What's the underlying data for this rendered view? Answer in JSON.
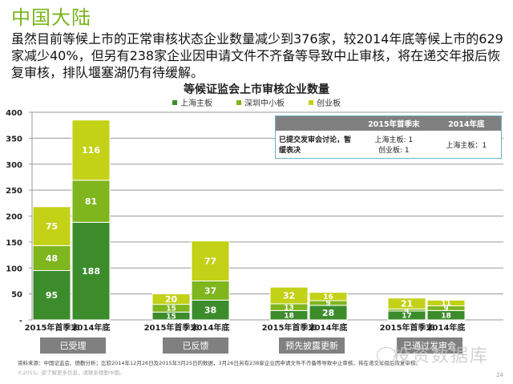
{
  "slide": {
    "title": "中国大陆",
    "intro": "虽然目前等候上市的正常审核状态企业数量减少到376家，较2014年底等候上市的629家减少40%，但另有238家企业因申请文件不齐备等导致中止审核，将在递交年报后恢复审核，排队堰塞湖仍有待缓解。",
    "source": "资料来源：中国证监会、德勤分析；比较2014年12月26日及2015年3月25日的数据，3月26日另有238家企业因申请文件不齐备等导致中止审核，将在递交年报后恢复审核。",
    "copyright": "©2015。欲了解更多信息，请联系德勤中国。",
    "page_number": "24",
    "watermark": "投资数据库",
    "watermark_icon": "wechat-icon"
  },
  "colors": {
    "shanghai": "#3c8c2c",
    "shenzhen_sme": "#7fb51d",
    "chinext": "#c3d117",
    "category_label_bg": "#808080",
    "table_border": "#6bb3c9",
    "title_green": "#7ab51d"
  },
  "info_table": {
    "headers": [
      "",
      "2015年首季末",
      "2014年底"
    ],
    "rows": [
      {
        "label": "已提交发审会讨论，暂缓表决",
        "q1_2015": [
          "上海主板: 1",
          "创业板: 1"
        ],
        "end_2014": [
          "上海主板：1"
        ]
      }
    ]
  },
  "chart_data": {
    "type": "bar",
    "stacked": true,
    "title": "等候证监会上市审核企业数量",
    "xlabel": "",
    "ylabel": "",
    "ylim": [
      0,
      400
    ],
    "yticks": [
      0,
      50,
      100,
      150,
      200,
      250,
      300,
      350,
      400
    ],
    "ytick_labels": [
      "-",
      "50",
      "100",
      "150",
      "200",
      "250",
      "300",
      "350",
      "400"
    ],
    "grid": true,
    "legend_position": "top-center",
    "groups": [
      "已受理",
      "已反馈",
      "预先披露更新",
      "已通过发审会"
    ],
    "categories": [
      "2015年首季末",
      "2014年底"
    ],
    "series": [
      {
        "name": "上海主板",
        "color": "#3c8c2c",
        "values": [
          [
            95,
            188
          ],
          [
            15,
            38
          ],
          [
            18,
            28
          ],
          [
            17,
            18
          ]
        ]
      },
      {
        "name": "深圳中小板",
        "color": "#7fb51d",
        "values": [
          [
            48,
            81
          ],
          [
            15,
            37
          ],
          [
            13,
            9
          ],
          [
            4,
            9
          ]
        ]
      },
      {
        "name": "创业板",
        "color": "#c3d117",
        "values": [
          [
            75,
            116
          ],
          [
            20,
            77
          ],
          [
            32,
            16
          ],
          [
            21,
            11
          ]
        ]
      }
    ]
  }
}
